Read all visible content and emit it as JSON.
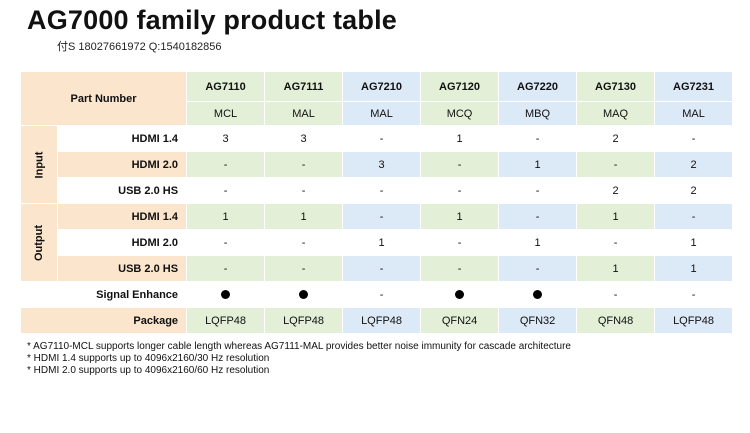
{
  "title": "AG7000 family product table",
  "contact": "付S 18027661972  Q:1540182856",
  "header": {
    "part_number_label": "Part Number",
    "products": [
      {
        "name": "AG7110",
        "suffix": "MCL"
      },
      {
        "name": "AG7111",
        "suffix": "MAL"
      },
      {
        "name": "AG7210",
        "suffix": "MAL"
      },
      {
        "name": "AG7120",
        "suffix": "MCQ"
      },
      {
        "name": "AG7220",
        "suffix": "MBQ"
      },
      {
        "name": "AG7130",
        "suffix": "MAQ"
      },
      {
        "name": "AG7231",
        "suffix": "MAL"
      }
    ]
  },
  "groups": {
    "input": "Input",
    "output": "Output"
  },
  "rows": {
    "input_hdmi14": {
      "label": "HDMI 1.4",
      "values": [
        "3",
        "3",
        "-",
        "1",
        "-",
        "2",
        "-"
      ]
    },
    "input_hdmi20": {
      "label": "HDMI 2.0",
      "values": [
        "-",
        "-",
        "3",
        "-",
        "1",
        "-",
        "2"
      ]
    },
    "input_usb20": {
      "label": "USB 2.0 HS",
      "values": [
        "-",
        "-",
        "-",
        "-",
        "-",
        "2",
        "2"
      ]
    },
    "output_hdmi14": {
      "label": "HDMI 1.4",
      "values": [
        "1",
        "1",
        "-",
        "1",
        "-",
        "1",
        "-"
      ]
    },
    "output_hdmi20": {
      "label": "HDMI 2.0",
      "values": [
        "-",
        "-",
        "1",
        "-",
        "1",
        "-",
        "1"
      ]
    },
    "output_usb20": {
      "label": "USB 2.0 HS",
      "values": [
        "-",
        "-",
        "-",
        "-",
        "-",
        "1",
        "1"
      ]
    },
    "signal_enhance": {
      "label": "Signal Enhance",
      "values": [
        "●",
        "●",
        "-",
        "●",
        "●",
        "-",
        "-"
      ]
    },
    "package": {
      "label": "Package",
      "values": [
        "LQFP48",
        "LQFP48",
        "LQFP48",
        "QFN24",
        "QFN32",
        "QFN48",
        "LQFP48"
      ]
    }
  },
  "notes": [
    "* AG7110-MCL supports longer cable length whereas AG7111-MAL provides better noise immunity for cascade architecture",
    "* HDMI 1.4 supports up to 4096x2160/30 Hz resolution",
    "* HDMI 2.0 supports up to 4096x2160/60 Hz resolution"
  ],
  "colors": {
    "orange_label": "#fbe5cc",
    "green_hdmi14": "#e3efd6",
    "blue_hdmi20": "#dce9f7"
  }
}
